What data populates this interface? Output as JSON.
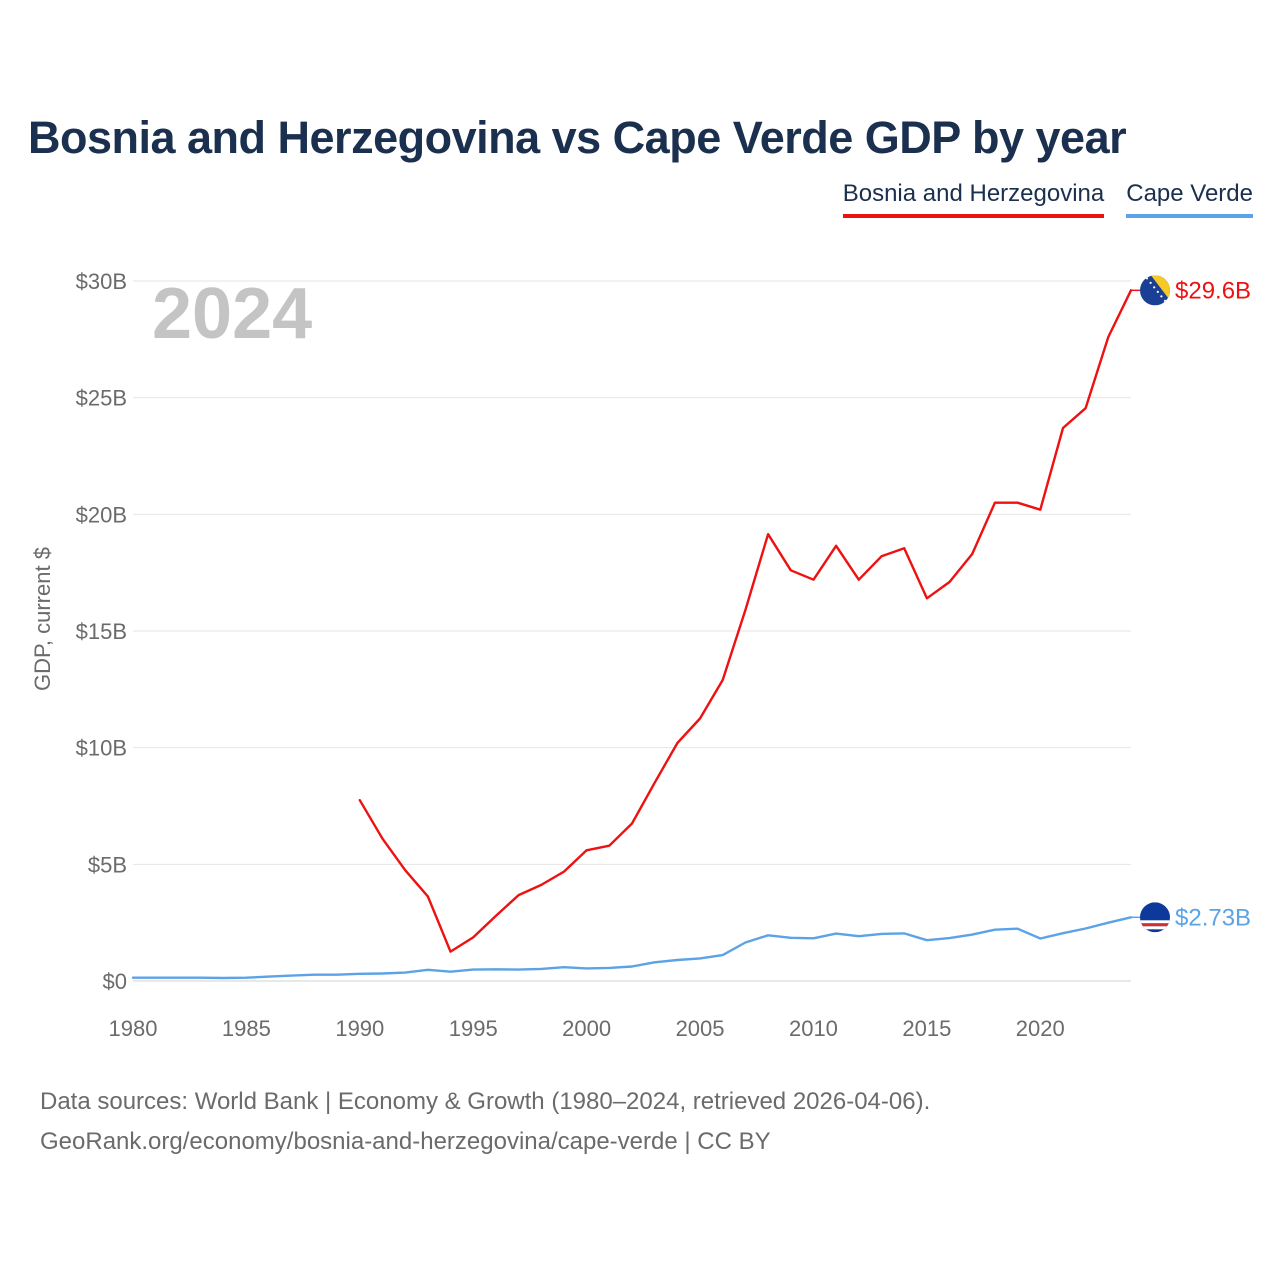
{
  "title": "Bosnia and Herzegovina vs Cape Verde GDP by year",
  "legend": [
    {
      "label": "Bosnia and Herzegovina",
      "color": "#ee1111"
    },
    {
      "label": "Cape Verde",
      "color": "#5ba3e6"
    }
  ],
  "year_label": "2024",
  "footer": {
    "line1": "Data sources: World Bank | Economy & Growth (1980–2024, retrieved 2026-04-06).",
    "line2": "GeoRank.org/economy/bosnia-and-herzegovina/cape-verde | CC BY"
  },
  "chart_data": {
    "type": "line",
    "title": "Bosnia and Herzegovina vs Cape Verde GDP by year",
    "xlabel": "",
    "ylabel": "GDP, current $",
    "xlim": [
      1980,
      2024
    ],
    "ylim": [
      0,
      30
    ],
    "y_unit": "billion USD",
    "x_ticks": [
      1980,
      1985,
      1990,
      1995,
      2000,
      2005,
      2010,
      2015,
      2020
    ],
    "y_ticks": [
      0,
      5,
      10,
      15,
      20,
      25,
      30
    ],
    "y_tick_labels": [
      "$0",
      "$5B",
      "$10B",
      "$15B",
      "$20B",
      "$25B",
      "$30B"
    ],
    "grid": true,
    "legend_position": "top-right",
    "series": [
      {
        "name": "Bosnia and Herzegovina",
        "color": "#ee1111",
        "end_label": "$29.6B",
        "x": [
          1990,
          1991,
          1992,
          1993,
          1994,
          1995,
          1996,
          1997,
          1998,
          1999,
          2000,
          2001,
          2002,
          2003,
          2004,
          2005,
          2006,
          2007,
          2008,
          2009,
          2010,
          2011,
          2012,
          2013,
          2014,
          2015,
          2016,
          2017,
          2018,
          2019,
          2020,
          2021,
          2022,
          2023,
          2024
        ],
        "values": [
          7.75,
          6.1,
          4.75,
          3.62,
          1.26,
          1.87,
          2.79,
          3.68,
          4.12,
          4.69,
          5.6,
          5.8,
          6.75,
          8.5,
          10.2,
          11.25,
          12.9,
          15.9,
          19.15,
          17.6,
          17.2,
          18.65,
          17.2,
          18.2,
          18.55,
          16.4,
          17.1,
          18.3,
          20.5,
          20.5,
          20.2,
          23.7,
          24.55,
          27.6,
          29.6
        ]
      },
      {
        "name": "Cape Verde",
        "color": "#5ba3e6",
        "end_label": "$2.73B",
        "x": [
          1980,
          1981,
          1982,
          1983,
          1984,
          1985,
          1986,
          1987,
          1988,
          1989,
          1990,
          1991,
          1992,
          1993,
          1994,
          1995,
          1996,
          1997,
          1998,
          1999,
          2000,
          2001,
          2002,
          2003,
          2004,
          2005,
          2006,
          2007,
          2008,
          2009,
          2010,
          2011,
          2012,
          2013,
          2014,
          2015,
          2016,
          2017,
          2018,
          2019,
          2020,
          2021,
          2022,
          2023,
          2024
        ],
        "values": [
          0.14,
          0.14,
          0.14,
          0.14,
          0.13,
          0.14,
          0.19,
          0.23,
          0.27,
          0.27,
          0.31,
          0.32,
          0.36,
          0.48,
          0.4,
          0.49,
          0.5,
          0.49,
          0.52,
          0.59,
          0.54,
          0.56,
          0.62,
          0.8,
          0.9,
          0.97,
          1.11,
          1.65,
          1.96,
          1.85,
          1.83,
          2.03,
          1.92,
          2.02,
          2.04,
          1.75,
          1.84,
          1.99,
          2.2,
          2.24,
          1.82,
          2.05,
          2.25,
          2.5,
          2.73
        ]
      }
    ]
  }
}
